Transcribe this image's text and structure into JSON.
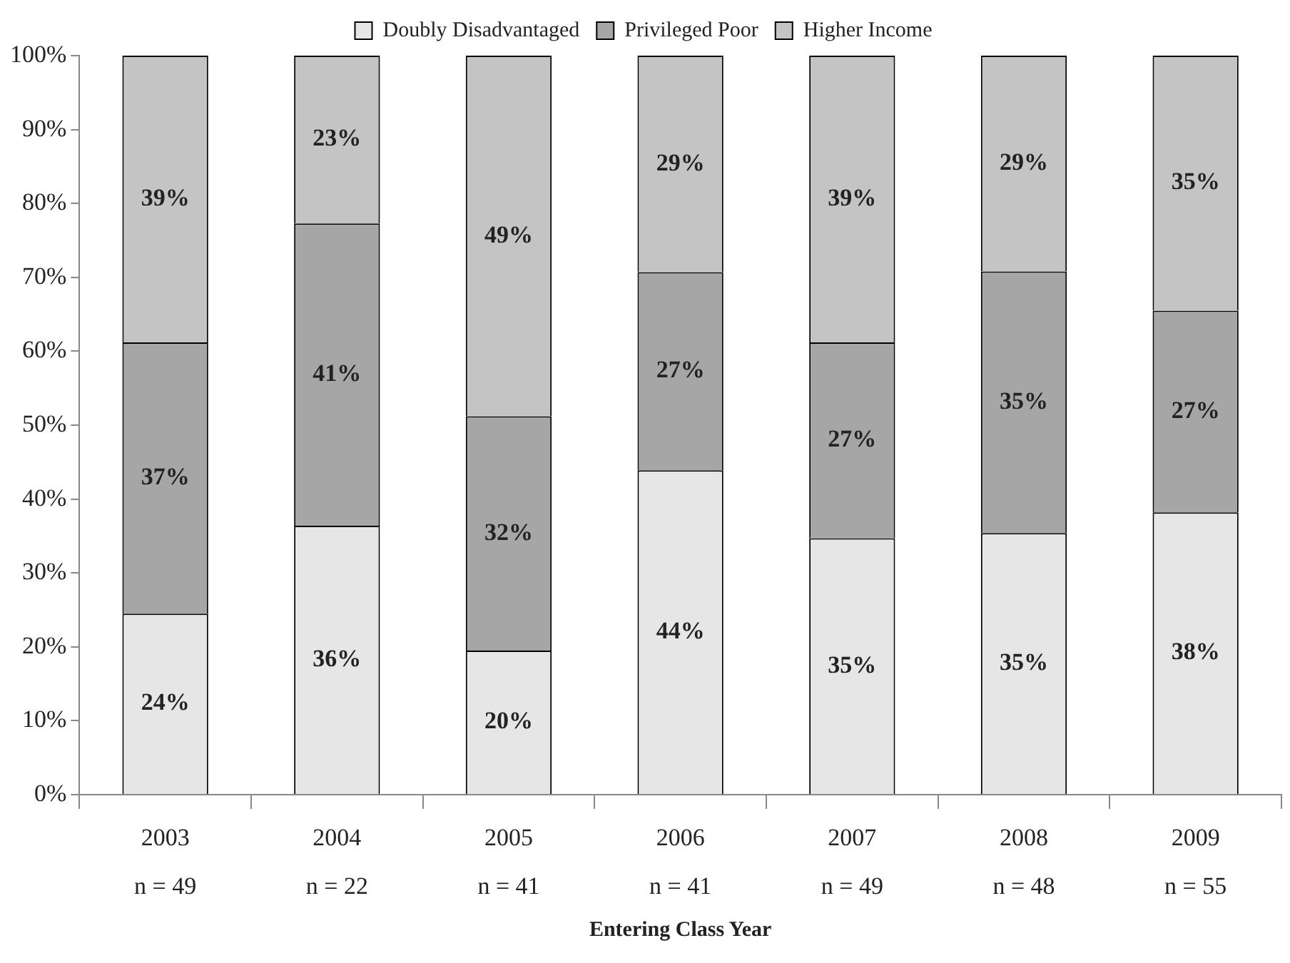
{
  "chart_data": {
    "type": "bar",
    "stacked": true,
    "xlabel": "Entering Class Year",
    "categories": [
      "2003\nn = 49",
      "2004\nn = 22",
      "2005\nn = 41",
      "2006\nn = 41",
      "2007\nn = 49",
      "2008\nn = 48",
      "2009\nn = 55"
    ],
    "series": [
      {
        "name": "Doubly Disadvantaged",
        "color": "#e6e6e6",
        "values": [
          24.5,
          36.4,
          19.5,
          43.9,
          34.7,
          35.4,
          38.2
        ],
        "value_labels": [
          "24%",
          "36%",
          "20%",
          "44%",
          "35%",
          "35%",
          "38%"
        ]
      },
      {
        "name": "Privileged Poor",
        "color": "#a6a6a6",
        "values": [
          36.7,
          40.9,
          31.7,
          26.8,
          26.5,
          35.4,
          27.3
        ],
        "value_labels": [
          "37%",
          "41%",
          "32%",
          "27%",
          "27%",
          "35%",
          "27%"
        ]
      },
      {
        "name": "Higher Income",
        "color": "#c4c4c4",
        "values": [
          38.8,
          22.7,
          48.8,
          29.3,
          38.8,
          29.2,
          34.5
        ],
        "value_labels": [
          "39%",
          "23%",
          "49%",
          "29%",
          "39%",
          "29%",
          "35%"
        ]
      }
    ],
    "ylim": [
      0,
      100
    ],
    "yticks": [
      {
        "value": 0,
        "label": "0%"
      },
      {
        "value": 10,
        "label": "10%"
      },
      {
        "value": 20,
        "label": "20%"
      },
      {
        "value": 30,
        "label": "30%"
      },
      {
        "value": 40,
        "label": "40%"
      },
      {
        "value": 50,
        "label": "50%"
      },
      {
        "value": 60,
        "label": "60%"
      },
      {
        "value": 70,
        "label": "70%"
      },
      {
        "value": 80,
        "label": "80%"
      },
      {
        "value": 90,
        "label": "90%"
      },
      {
        "value": 100,
        "label": "100%"
      }
    ],
    "grid": false,
    "legend": "top"
  }
}
